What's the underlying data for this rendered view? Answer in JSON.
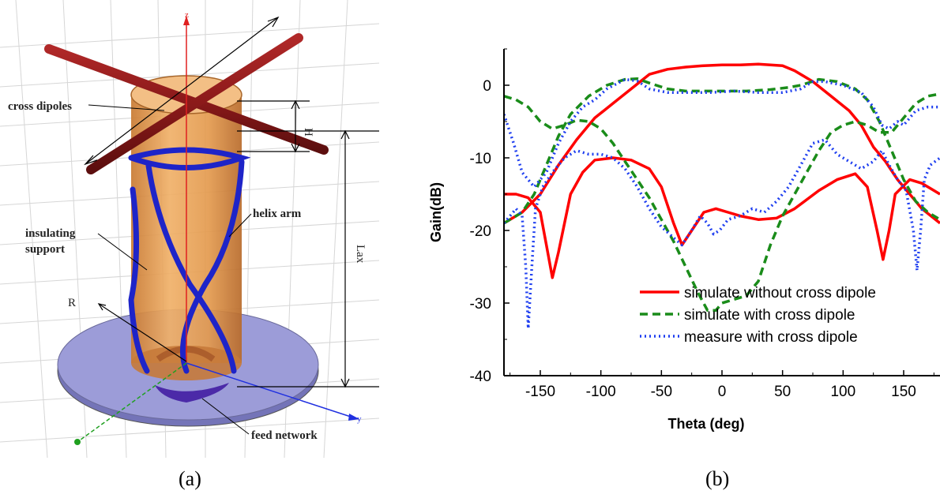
{
  "figure_a": {
    "labels": {
      "cross_dipoles": "cross dipoles",
      "helix_arm": "helix arm",
      "insulating_support_1": "insulating",
      "insulating_support_2": "support",
      "radius": "R",
      "height": "H",
      "axial_length": "Lax",
      "feed_network": "feed network",
      "z_axis": "z",
      "y_axis": "y"
    },
    "caption": "(a)",
    "colors": {
      "support": "#e8a050",
      "helix": "#1e24c8",
      "dipole": "#8b1a1a",
      "ground": "#8c8cd0"
    }
  },
  "chart_data": {
    "type": "line",
    "caption": "(b)",
    "xlabel": "Theta (deg)",
    "ylabel": "Gain(dB)",
    "xlim": [
      -180,
      180
    ],
    "ylim": [
      -40,
      5
    ],
    "xticks": [
      -150,
      -100,
      -50,
      0,
      50,
      100,
      150
    ],
    "yticks": [
      0,
      -10,
      -20,
      -30,
      -40
    ],
    "grid": false,
    "legend_position": "bottom-right",
    "series": [
      {
        "name": "simulate without cross dipole",
        "color": "#ff0000",
        "dash": "solid",
        "curves": [
          [
            [
              -180,
              -19
            ],
            [
              -165,
              -17.5
            ],
            [
              -150,
              -15
            ],
            [
              -135,
              -11
            ],
            [
              -120,
              -7.5
            ],
            [
              -105,
              -4.5
            ],
            [
              -90,
              -2.5
            ],
            [
              -75,
              -0.5
            ],
            [
              -60,
              1.5
            ],
            [
              -45,
              2.2
            ],
            [
              -30,
              2.5
            ],
            [
              -15,
              2.7
            ],
            [
              0,
              2.8
            ],
            [
              15,
              2.8
            ],
            [
              30,
              2.9
            ],
            [
              50,
              2.7
            ],
            [
              60,
              2.0
            ],
            [
              75,
              0.5
            ],
            [
              90,
              -1.5
            ],
            [
              105,
              -3.5
            ],
            [
              115,
              -5.5
            ],
            [
              125,
              -8.5
            ],
            [
              135,
              -10.5
            ],
            [
              145,
              -13
            ],
            [
              155,
              -15
            ],
            [
              165,
              -17
            ],
            [
              180,
              -19
            ]
          ],
          [
            [
              -180,
              -15
            ],
            [
              -170,
              -15
            ],
            [
              -160,
              -15.5
            ],
            [
              -150,
              -17.5
            ],
            [
              -145,
              -22
            ],
            [
              -140,
              -26.5
            ],
            [
              -135,
              -23
            ],
            [
              -125,
              -15
            ],
            [
              -115,
              -12
            ],
            [
              -105,
              -10.3
            ],
            [
              -90,
              -10
            ],
            [
              -75,
              -10.3
            ],
            [
              -60,
              -11.5
            ],
            [
              -50,
              -14
            ],
            [
              -40,
              -19
            ],
            [
              -33,
              -22
            ],
            [
              -25,
              -20
            ],
            [
              -15,
              -17.5
            ],
            [
              -5,
              -17
            ],
            [
              5,
              -17.5
            ],
            [
              15,
              -18
            ],
            [
              30,
              -18.5
            ],
            [
              45,
              -18.3
            ],
            [
              60,
              -17
            ],
            [
              80,
              -14.5
            ],
            [
              95,
              -13
            ],
            [
              110,
              -12.2
            ],
            [
              120,
              -14
            ],
            [
              128,
              -20
            ],
            [
              133,
              -24
            ],
            [
              138,
              -20
            ],
            [
              143,
              -15
            ],
            [
              155,
              -13
            ],
            [
              165,
              -13.5
            ],
            [
              175,
              -14.5
            ],
            [
              180,
              -15
            ]
          ]
        ]
      },
      {
        "name": "simulate with cross dipole",
        "color": "#1a8c1a",
        "dash": "10,6",
        "curves": [
          [
            [
              -180,
              -19
            ],
            [
              -165,
              -17.5
            ],
            [
              -155,
              -15
            ],
            [
              -145,
              -11
            ],
            [
              -135,
              -7
            ],
            [
              -125,
              -4
            ],
            [
              -110,
              -1.5
            ],
            [
              -95,
              0
            ],
            [
              -80,
              0.8
            ],
            [
              -70,
              0.9
            ],
            [
              -60,
              0.3
            ],
            [
              -45,
              -0.5
            ],
            [
              -30,
              -0.8
            ],
            [
              -15,
              -0.8
            ],
            [
              0,
              -0.8
            ],
            [
              20,
              -0.8
            ],
            [
              40,
              -0.6
            ],
            [
              55,
              -0.3
            ],
            [
              65,
              0
            ],
            [
              80,
              0.8
            ],
            [
              95,
              0.5
            ],
            [
              110,
              -0.5
            ],
            [
              120,
              -2
            ],
            [
              130,
              -5
            ],
            [
              140,
              -9
            ],
            [
              150,
              -13
            ],
            [
              160,
              -16
            ],
            [
              170,
              -17.5
            ],
            [
              180,
              -18.5
            ]
          ],
          [
            [
              -180,
              -1.5
            ],
            [
              -170,
              -2
            ],
            [
              -160,
              -3
            ],
            [
              -150,
              -5
            ],
            [
              -140,
              -6
            ],
            [
              -130,
              -5.5
            ],
            [
              -120,
              -4.8
            ],
            [
              -110,
              -5
            ],
            [
              -100,
              -6
            ],
            [
              -90,
              -8
            ],
            [
              -80,
              -10.5
            ],
            [
              -70,
              -13
            ],
            [
              -60,
              -15.5
            ],
            [
              -50,
              -18.5
            ],
            [
              -40,
              -21.5
            ],
            [
              -30,
              -25
            ],
            [
              -20,
              -28.5
            ],
            [
              -12,
              -31
            ],
            [
              -5,
              -31
            ],
            [
              0,
              -30
            ],
            [
              10,
              -29.5
            ],
            [
              20,
              -29
            ],
            [
              30,
              -27
            ],
            [
              40,
              -22
            ],
            [
              50,
              -18
            ],
            [
              60,
              -15
            ],
            [
              70,
              -12
            ],
            [
              80,
              -9
            ],
            [
              90,
              -6.5
            ],
            [
              100,
              -5.5
            ],
            [
              110,
              -5
            ],
            [
              120,
              -5.5
            ],
            [
              130,
              -6.5
            ],
            [
              140,
              -6.5
            ],
            [
              150,
              -4.5
            ],
            [
              160,
              -2.5
            ],
            [
              170,
              -1.5
            ],
            [
              180,
              -1.2
            ]
          ]
        ]
      },
      {
        "name": "measure with cross dipole",
        "color": "#1f3ff0",
        "dash": "2,4",
        "curves": [
          [
            [
              -180,
              -19
            ],
            [
              -175,
              -18
            ],
            [
              -170,
              -17
            ],
            [
              -165,
              -18
            ],
            [
              -162,
              -25
            ],
            [
              -160,
              -33.5
            ],
            [
              -157,
              -25
            ],
            [
              -154,
              -17
            ],
            [
              -148,
              -14
            ],
            [
              -140,
              -12
            ],
            [
              -130,
              -10
            ],
            [
              -120,
              -9
            ],
            [
              -110,
              -9.5
            ],
            [
              -100,
              -9.5
            ],
            [
              -90,
              -10
            ],
            [
              -80,
              -11.5
            ],
            [
              -70,
              -14
            ],
            [
              -60,
              -17
            ],
            [
              -50,
              -19.5
            ],
            [
              -40,
              -21
            ],
            [
              -33,
              -22
            ],
            [
              -25,
              -20
            ],
            [
              -18,
              -18
            ],
            [
              -12,
              -19
            ],
            [
              -7,
              -20.5
            ],
            [
              -2,
              -20
            ],
            [
              5,
              -18.5
            ],
            [
              15,
              -18
            ],
            [
              25,
              -17
            ],
            [
              35,
              -17.5
            ],
            [
              45,
              -16
            ],
            [
              55,
              -14
            ],
            [
              65,
              -11
            ],
            [
              75,
              -8
            ],
            [
              85,
              -7.5
            ],
            [
              95,
              -9.5
            ],
            [
              105,
              -10.5
            ],
            [
              115,
              -11.5
            ],
            [
              125,
              -10.5
            ],
            [
              132,
              -9
            ],
            [
              138,
              -11
            ],
            [
              145,
              -13
            ],
            [
              152,
              -14.5
            ],
            [
              158,
              -20
            ],
            [
              161,
              -25.5
            ],
            [
              164,
              -20
            ],
            [
              167,
              -13
            ],
            [
              172,
              -11
            ],
            [
              180,
              -10
            ]
          ],
          [
            [
              -180,
              -4
            ],
            [
              -172,
              -8
            ],
            [
              -165,
              -12
            ],
            [
              -155,
              -14
            ],
            [
              -145,
              -12
            ],
            [
              -135,
              -8
            ],
            [
              -125,
              -5
            ],
            [
              -115,
              -3
            ],
            [
              -105,
              -2
            ],
            [
              -95,
              -0.5
            ],
            [
              -80,
              0.8
            ],
            [
              -70,
              0.6
            ],
            [
              -60,
              -0.5
            ],
            [
              -45,
              -1
            ],
            [
              -30,
              -1
            ],
            [
              -10,
              -1
            ],
            [
              10,
              -0.8
            ],
            [
              30,
              -1
            ],
            [
              50,
              -1
            ],
            [
              65,
              -0.5
            ],
            [
              75,
              0.5
            ],
            [
              85,
              0.5
            ],
            [
              100,
              0
            ],
            [
              115,
              -1
            ],
            [
              125,
              -3
            ],
            [
              132,
              -5.5
            ],
            [
              138,
              -6
            ],
            [
              145,
              -5
            ],
            [
              150,
              -5.5
            ],
            [
              155,
              -4.5
            ],
            [
              160,
              -3.5
            ],
            [
              170,
              -3
            ],
            [
              180,
              -3
            ]
          ]
        ]
      }
    ]
  }
}
